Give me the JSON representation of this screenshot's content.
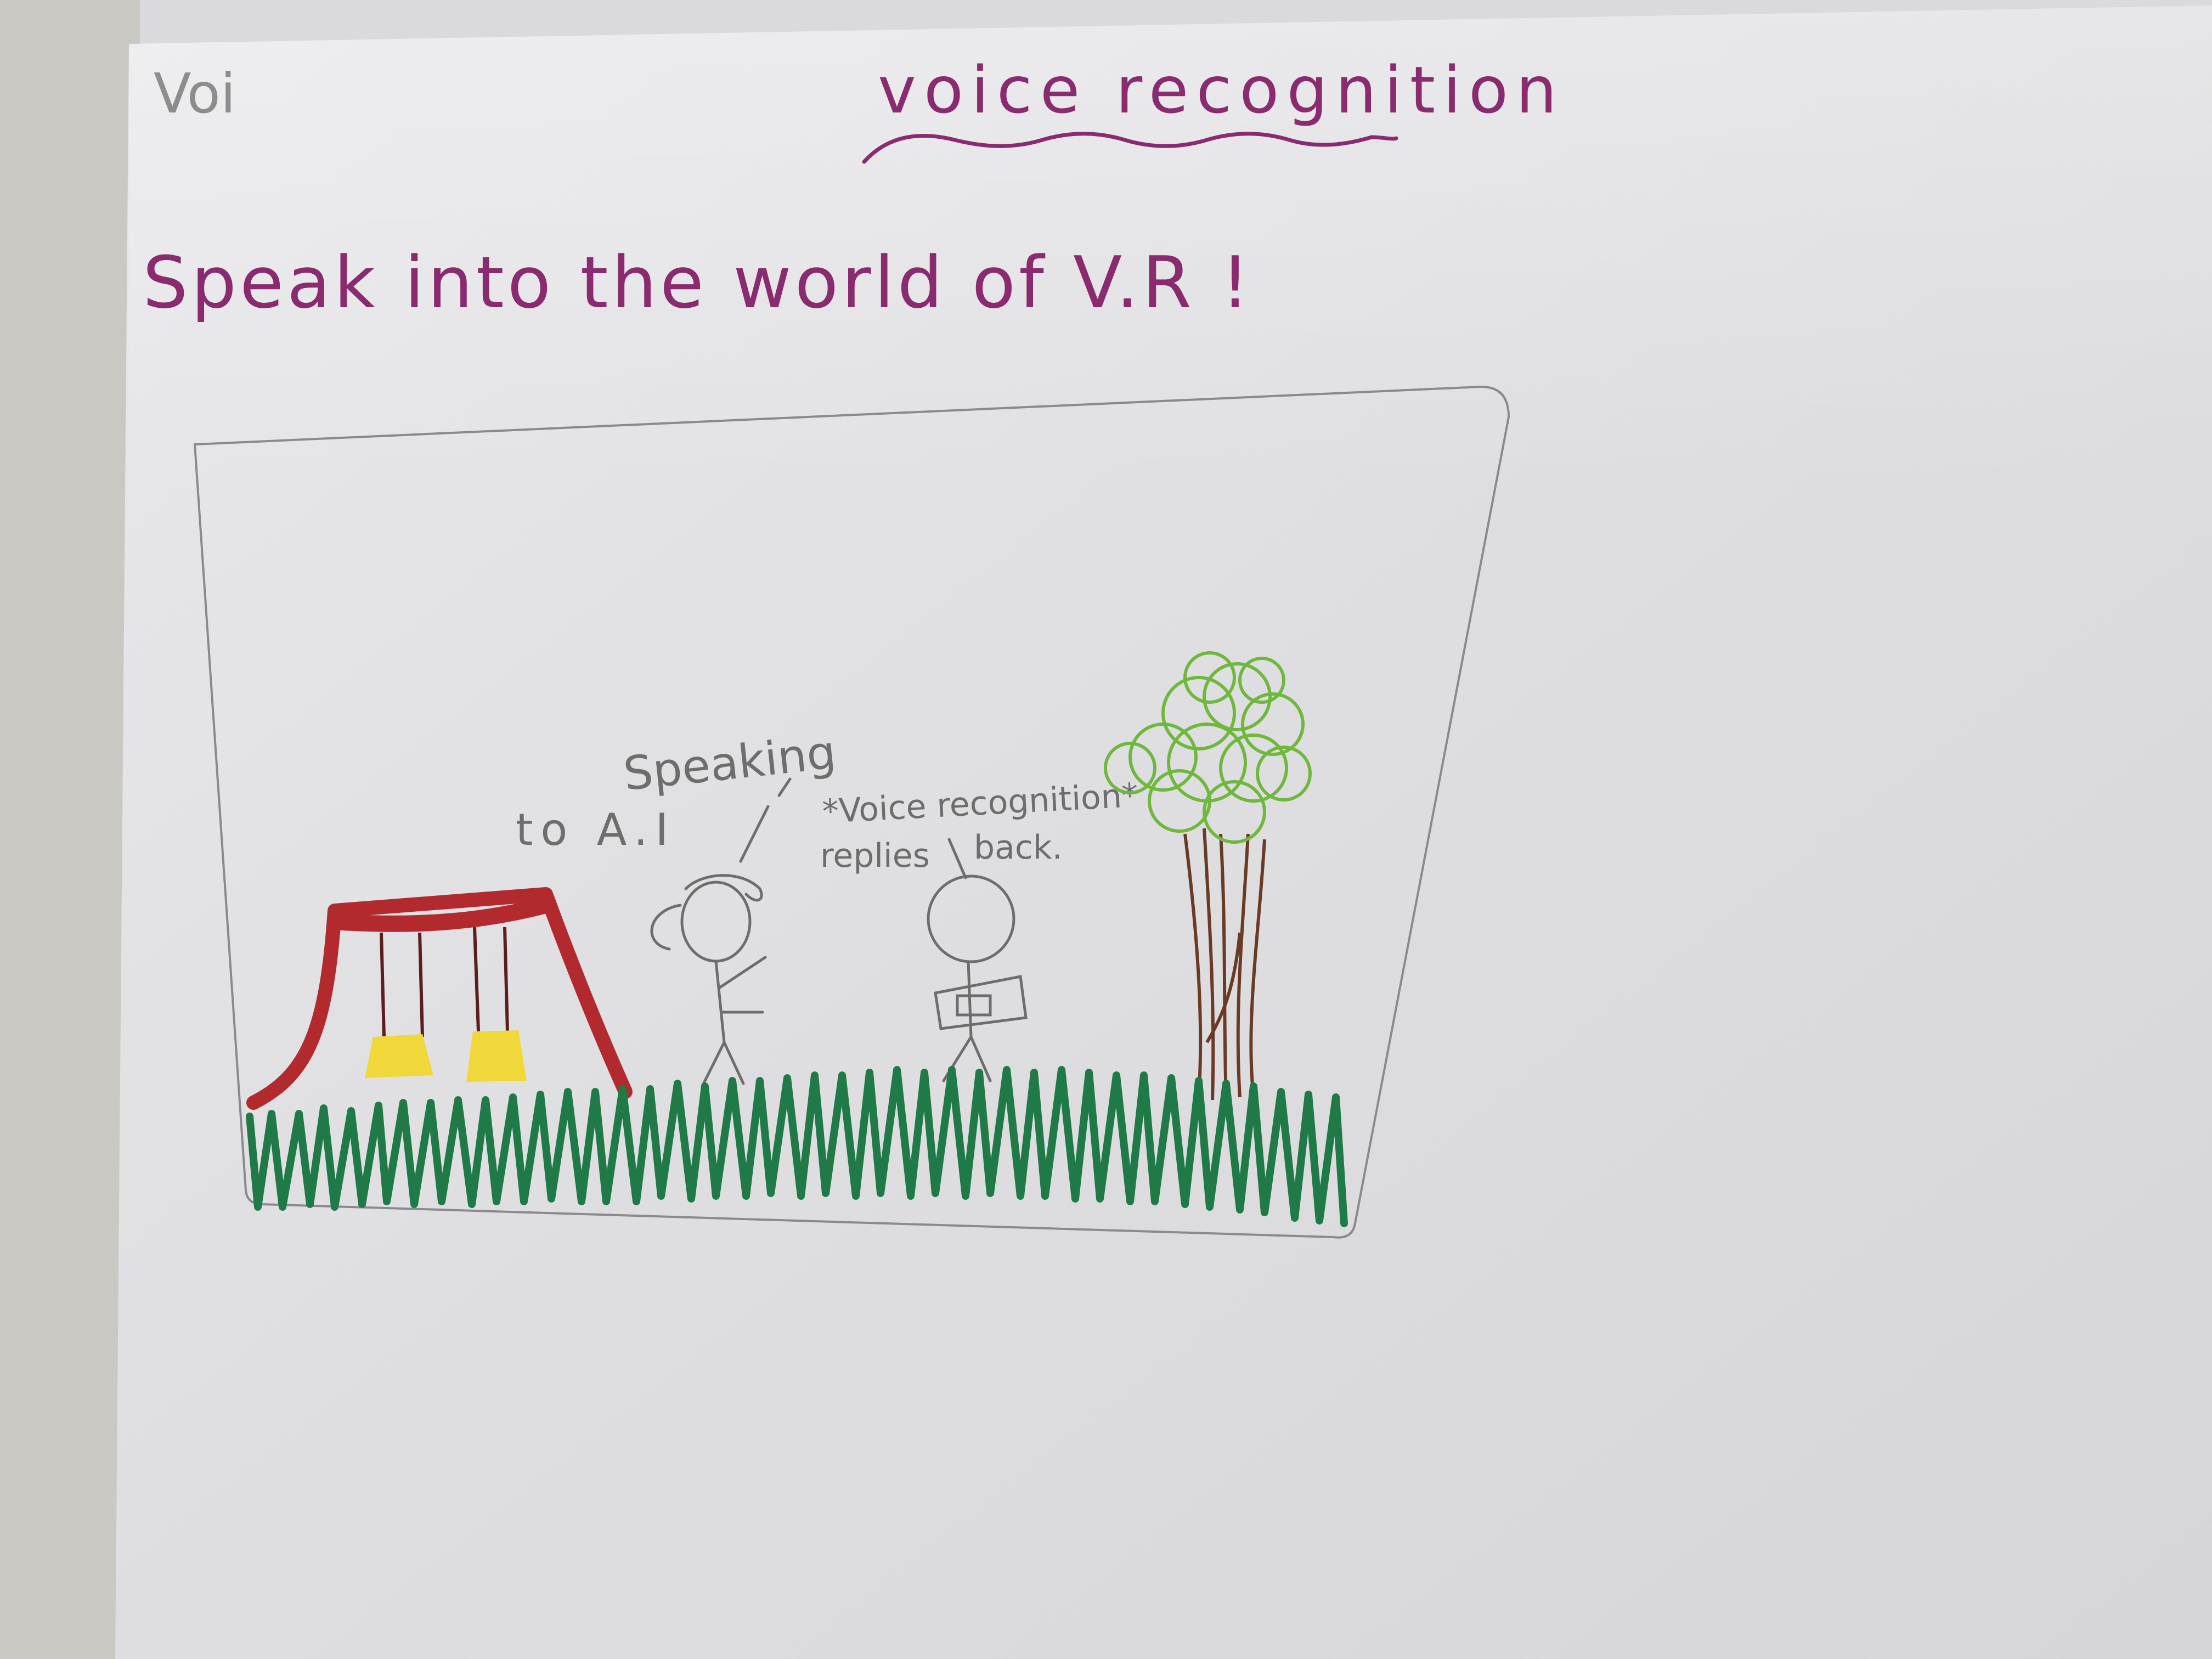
{
  "photo": {
    "subject": "hand-drawn storyboard sketch on white paper",
    "colors": {
      "paper": "#e4e4e6",
      "background": "#c9c8c2",
      "ink_purple": "#8a2a6f",
      "ink_grey": "#6d6d6d",
      "swing_red": "#b22a2e",
      "seat_yellow": "#f0d83a",
      "grass_green": "#1f7a48",
      "tree_green": "#6fb83d",
      "trunk_brown": "#6b3a24"
    }
  },
  "page": {
    "corner_fragment": "Voi",
    "title": "voice recognition",
    "heading": "Speak into the world of V.R !"
  },
  "sketch": {
    "person_label_top": "Speaking",
    "person_label_bottom": "to A.I",
    "ai_reply_top": "*Voice recognition*",
    "ai_reply_left": "replies",
    "ai_reply_right": "back."
  }
}
